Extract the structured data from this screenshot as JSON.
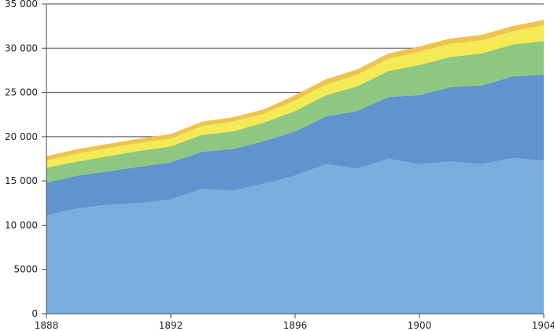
{
  "chart_data": {
    "type": "area",
    "stacked": true,
    "x": [
      1888,
      1889,
      1890,
      1891,
      1892,
      1893,
      1894,
      1895,
      1896,
      1897,
      1898,
      1899,
      1900,
      1901,
      1902,
      1903,
      1904
    ],
    "x_ticks": [
      "1888",
      "1892",
      "1896",
      "1900",
      "1904"
    ],
    "y_ticks": [
      "0",
      "5000",
      "10 000",
      "15 000",
      "20 000",
      "25 000",
      "30 000",
      "35 000"
    ],
    "xlim": [
      1888,
      1904
    ],
    "ylim": [
      0,
      35000
    ],
    "grid": "horizontal",
    "legend": "none",
    "series": [
      {
        "color": "#7aaddc",
        "values": [
          11100,
          11900,
          12300,
          12500,
          12900,
          14100,
          13900,
          14700,
          15600,
          16900,
          16400,
          17500,
          16900,
          17200,
          16900,
          17600,
          17300
        ]
      },
      {
        "color": "#5f94cf",
        "values": [
          3700,
          3700,
          3800,
          4100,
          4200,
          4200,
          4700,
          4800,
          5000,
          5400,
          6500,
          7000,
          7800,
          8400,
          8900,
          9200,
          9700
        ]
      },
      {
        "color": "#8dc782",
        "values": [
          1700,
          1600,
          1700,
          1800,
          1800,
          1900,
          2000,
          2100,
          2300,
          2400,
          2800,
          2900,
          3400,
          3400,
          3600,
          3600,
          3800
        ]
      },
      {
        "color": "#f4ea55",
        "values": [
          800,
          900,
          900,
          900,
          900,
          1000,
          1100,
          1000,
          1200,
          1200,
          1300,
          1400,
          1500,
          1500,
          1500,
          1500,
          1800
        ]
      },
      {
        "color": "#efc34f",
        "values": [
          500,
          500,
          500,
          500,
          500,
          500,
          500,
          500,
          600,
          600,
          600,
          600,
          600,
          600,
          600,
          600,
          600
        ]
      }
    ]
  }
}
